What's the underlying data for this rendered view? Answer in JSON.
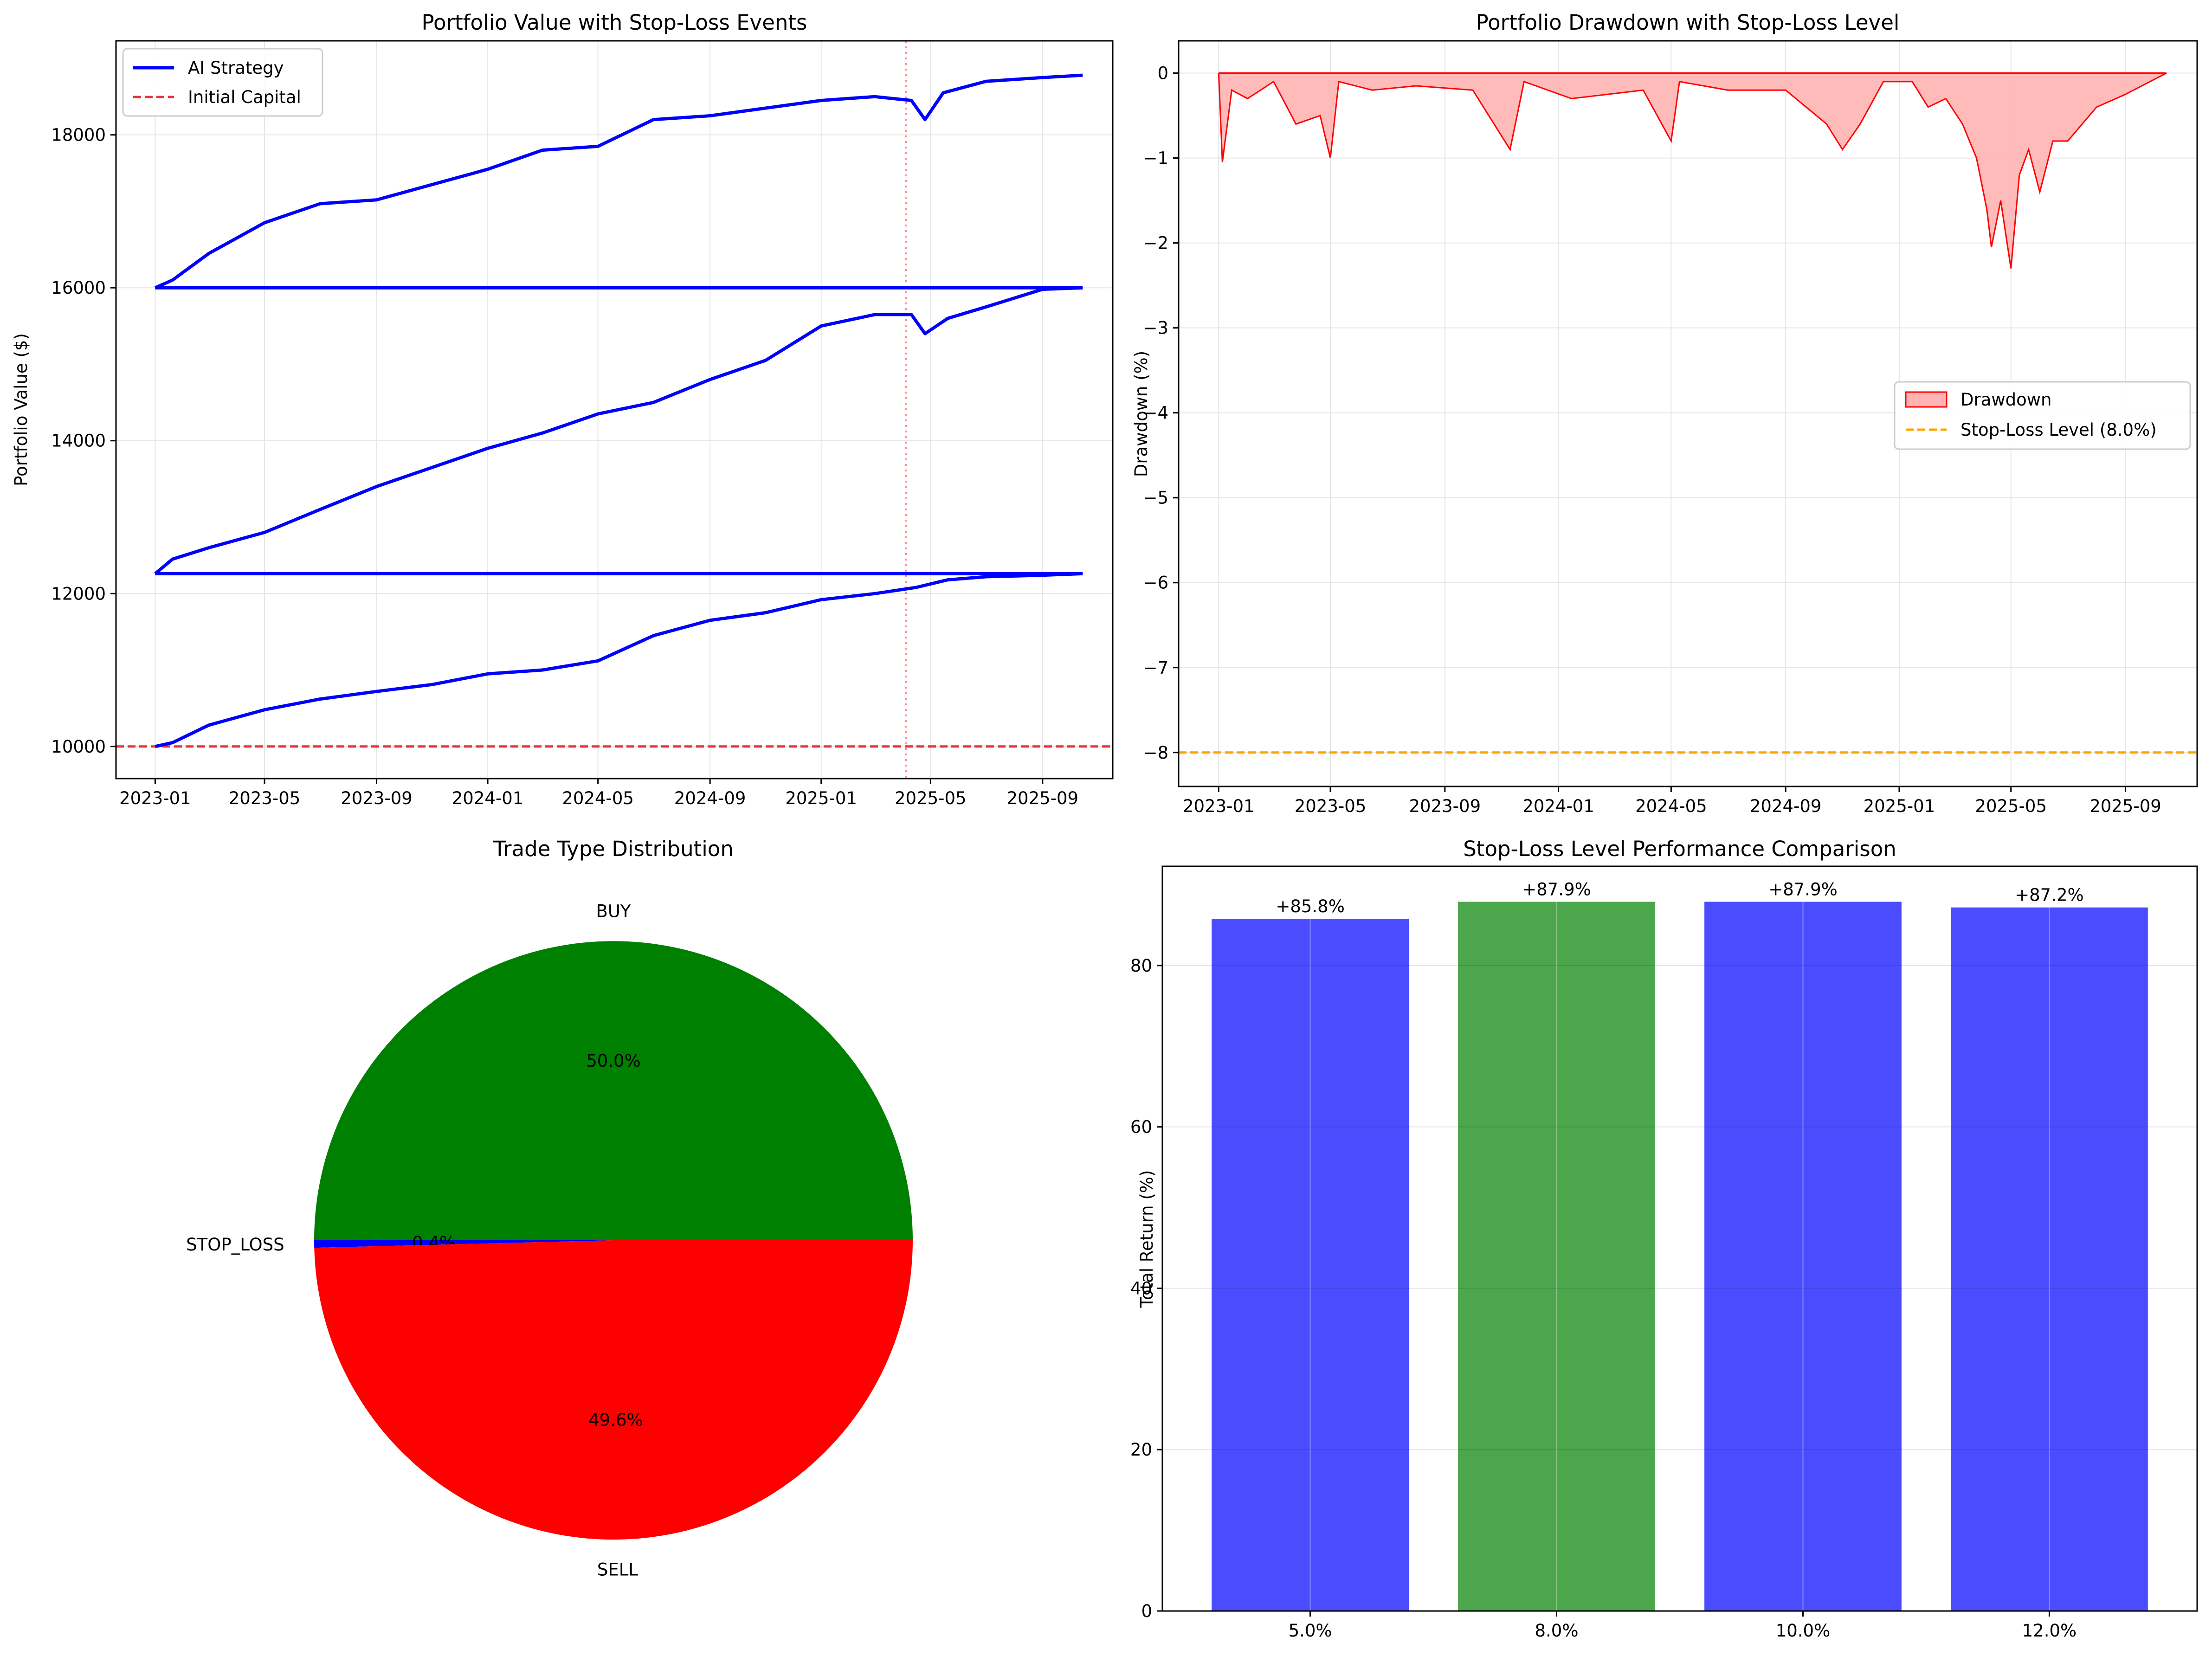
{
  "colors": {
    "blue": "#0000ff",
    "red": "#ff0000",
    "initial_line": "#e8343c",
    "orange": "#ffa500",
    "green": "#008000",
    "bar_blue": "#4c4cff",
    "bar_green": "#4ca64c",
    "drawdown_fill": "#ffb3b3",
    "grid": "#e6e6e6"
  },
  "chart_data": [
    {
      "type": "line",
      "title": "Portfolio Value with Stop-Loss Events",
      "xlabel": "",
      "ylabel": "Portfolio Value ($)",
      "x_ticks": [
        "2023-01",
        "2023-05",
        "2023-09",
        "2024-01",
        "2024-05",
        "2024-09",
        "2025-01",
        "2025-05",
        "2025-09"
      ],
      "y_ticks": [
        "10000",
        "12000",
        "14000",
        "16000",
        "18000"
      ],
      "xlim": [
        "2022-11-19",
        "2025-11-17"
      ],
      "ylim": [
        9580,
        19230
      ],
      "grid": true,
      "legend": {
        "placement": "upper-left",
        "entries": [
          "AI Strategy",
          "Initial Capital"
        ]
      },
      "series": [
        {
          "name": "AI Strategy",
          "segments": [
            {
              "x": [
                "2023-01-01",
                "2023-01-20",
                "2023-03-01",
                "2023-05-01",
                "2023-07-01",
                "2023-09-01",
                "2023-11-01",
                "2024-01-01",
                "2024-03-01",
                "2024-05-01",
                "2024-07-01",
                "2024-09-01",
                "2024-11-01",
                "2025-01-01",
                "2025-03-01",
                "2025-04-15",
                "2025-05-20",
                "2025-07-01",
                "2025-09-01",
                "2025-10-15"
              ],
              "y": [
                10000,
                10050,
                10280,
                10480,
                10620,
                10720,
                10810,
                10950,
                11000,
                11120,
                11450,
                11650,
                11750,
                11920,
                12000,
                12080,
                12180,
                12220,
                12240,
                12260
              ]
            },
            {
              "x": [
                "2023-01-01",
                "2025-10-15"
              ],
              "y": [
                12260,
                12260
              ]
            },
            {
              "x": [
                "2023-01-01",
                "2023-01-20",
                "2023-03-01",
                "2023-05-01",
                "2023-07-01",
                "2023-09-01",
                "2023-11-01",
                "2024-01-01",
                "2024-03-01",
                "2024-05-01",
                "2024-07-01",
                "2024-09-01",
                "2024-11-01",
                "2025-01-01",
                "2025-03-01",
                "2025-04-10",
                "2025-04-25",
                "2025-05-20",
                "2025-07-01",
                "2025-09-01",
                "2025-10-15"
              ],
              "y": [
                12260,
                12450,
                12600,
                12800,
                13100,
                13400,
                13650,
                13900,
                14100,
                14350,
                14500,
                14800,
                15050,
                15500,
                15650,
                15650,
                15400,
                15600,
                15750,
                15980,
                16000
              ]
            },
            {
              "x": [
                "2023-01-01",
                "2025-10-15"
              ],
              "y": [
                16000,
                16000
              ]
            },
            {
              "x": [
                "2023-01-01",
                "2023-01-20",
                "2023-03-01",
                "2023-05-01",
                "2023-07-01",
                "2023-09-01",
                "2023-11-01",
                "2024-01-01",
                "2024-03-01",
                "2024-05-01",
                "2024-07-01",
                "2024-09-01",
                "2024-11-01",
                "2025-01-01",
                "2025-03-01",
                "2025-04-10",
                "2025-04-25",
                "2025-05-15",
                "2025-07-01",
                "2025-09-01",
                "2025-10-15"
              ],
              "y": [
                16000,
                16100,
                16450,
                16850,
                17100,
                17150,
                17350,
                17550,
                17800,
                17850,
                18200,
                18250,
                18350,
                18450,
                18500,
                18450,
                18200,
                18550,
                18700,
                18750,
                18780
              ]
            }
          ]
        },
        {
          "name": "Initial Capital",
          "y": 10000
        }
      ],
      "stop_loss_events": [
        "2025-04-04"
      ]
    },
    {
      "type": "area",
      "title": "Portfolio Drawdown with Stop-Loss Level",
      "xlabel": "",
      "ylabel": "Drawdown (%)",
      "x_ticks": [
        "2023-01",
        "2023-05",
        "2023-09",
        "2024-01",
        "2024-05",
        "2024-09",
        "2025-01",
        "2025-05",
        "2025-09"
      ],
      "y_ticks": [
        "0",
        "−1",
        "−2",
        "−3",
        "−4",
        "−5",
        "−6",
        "−7",
        "−8"
      ],
      "xlim": [
        "2022-11-19",
        "2025-11-17"
      ],
      "ylim": [
        -8.4,
        0.38
      ],
      "grid": true,
      "legend": {
        "placement": "center-right",
        "entries": [
          "Drawdown",
          "Stop-Loss Level (8.0%)"
        ]
      },
      "series": [
        {
          "name": "Drawdown",
          "x": [
            "2023-01-01",
            "2023-01-05",
            "2023-01-15",
            "2023-02-01",
            "2023-03-01",
            "2023-03-25",
            "2023-04-20",
            "2023-05-01",
            "2023-05-10",
            "2023-06-15",
            "2023-08-01",
            "2023-10-01",
            "2023-11-10",
            "2023-11-25",
            "2024-01-15",
            "2024-04-01",
            "2024-05-01",
            "2024-05-10",
            "2024-07-01",
            "2024-09-01",
            "2024-10-15",
            "2024-11-01",
            "2024-11-20",
            "2024-12-15",
            "2025-01-15",
            "2025-02-01",
            "2025-02-20",
            "2025-03-10",
            "2025-03-25",
            "2025-04-05",
            "2025-04-10",
            "2025-04-20",
            "2025-05-01",
            "2025-05-10",
            "2025-05-20",
            "2025-06-01",
            "2025-06-15",
            "2025-07-01",
            "2025-08-01",
            "2025-09-01",
            "2025-10-15"
          ],
          "y": [
            0,
            -1.05,
            -0.2,
            -0.3,
            -0.1,
            -0.6,
            -0.5,
            -1.0,
            -0.1,
            -0.2,
            -0.15,
            -0.2,
            -0.9,
            -0.1,
            -0.3,
            -0.2,
            -0.8,
            -0.1,
            -0.2,
            -0.2,
            -0.6,
            -0.9,
            -0.6,
            -0.1,
            -0.1,
            -0.4,
            -0.3,
            -0.6,
            -1.0,
            -1.6,
            -2.05,
            -1.5,
            -2.3,
            -1.2,
            -0.9,
            -1.4,
            -0.8,
            -0.8,
            -0.4,
            -0.25,
            0
          ]
        },
        {
          "name": "Stop-Loss Level (8.0%)",
          "y": -8
        }
      ]
    },
    {
      "type": "pie",
      "title": "Trade Type Distribution",
      "labels": [
        "BUY",
        "STOP_LOSS",
        "SELL"
      ],
      "values": [
        50.0,
        0.4,
        49.6
      ],
      "autopct": [
        "50.0%",
        "0.4%",
        "49.6%"
      ]
    },
    {
      "type": "bar",
      "title": "Stop-Loss Level Performance Comparison",
      "xlabel": "",
      "ylabel": "Total Return (%)",
      "categories": [
        "5.0%",
        "8.0%",
        "10.0%",
        "12.0%"
      ],
      "values": [
        85.8,
        87.9,
        87.9,
        87.2
      ],
      "value_labels": [
        "+85.8%",
        "+87.9%",
        "+87.9%",
        "+87.2%"
      ],
      "highlight": "8.0%",
      "y_ticks": [
        "0",
        "20",
        "40",
        "60",
        "80"
      ],
      "ylim": [
        0,
        92.3
      ],
      "grid": true
    }
  ]
}
